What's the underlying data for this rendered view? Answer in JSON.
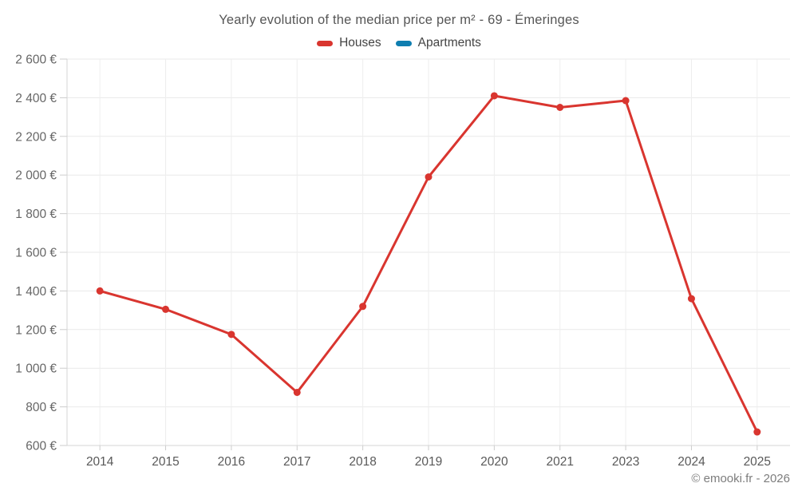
{
  "title": "Yearly evolution of the median price per m² - 69 - Émeringes",
  "copyright": "© emooki.fr - 2026",
  "colors": {
    "houses": "#d9352f",
    "apartments": "#0f7eb0",
    "gridline": "#e9e9e9",
    "vertical_gridline": "#eeeeee",
    "axis_line": "#d4d4d4",
    "tick_mark": "#cccccc",
    "background": "#ffffff"
  },
  "chart_data": {
    "type": "line",
    "title": "Yearly evolution of the median price per m² - 69 - Émeringes",
    "categories": [
      "2014",
      "2015",
      "2016",
      "2017",
      "2018",
      "2019",
      "2020",
      "2021",
      "2023",
      "2024",
      "2025"
    ],
    "series": [
      {
        "name": "Houses",
        "color": "#d9352f",
        "values": [
          1400,
          1305,
          1175,
          875,
          1320,
          1990,
          2410,
          2350,
          2385,
          1360,
          670
        ]
      },
      {
        "name": "Apartments",
        "color": "#0f7eb0",
        "values": []
      }
    ],
    "xlabel": "",
    "ylabel": "",
    "ylim": [
      600,
      2600
    ],
    "ytick_step": 200,
    "ytick_labels": [
      "600 €",
      "800 €",
      "1 000 €",
      "1 200 €",
      "1 400 €",
      "1 600 €",
      "1 800 €",
      "2 000 €",
      "2 200 €",
      "2 400 €",
      "2 600 €"
    ],
    "grid": true,
    "legend_position": "top",
    "marker_radius": 4.5,
    "line_width": 3
  }
}
